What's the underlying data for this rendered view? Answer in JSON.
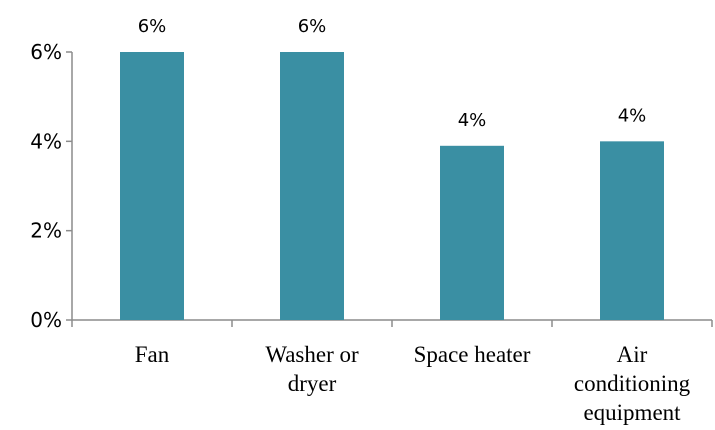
{
  "chart_data": {
    "type": "bar",
    "categories": [
      [
        "Fan"
      ],
      [
        "Washer or",
        "dryer"
      ],
      [
        "Space heater"
      ],
      [
        "Air",
        "conditioning",
        "equipment"
      ]
    ],
    "values": [
      6,
      6,
      3.9,
      4
    ],
    "value_labels": [
      "6%",
      "6%",
      "4%",
      "4%"
    ],
    "title": "",
    "xlabel": "",
    "ylabel": "",
    "ylim": [
      0,
      6
    ],
    "yticks": [
      0,
      2,
      4,
      6
    ],
    "ytick_labels": [
      "0%",
      "2%",
      "4%",
      "6%"
    ],
    "bar_color": "#3a8fa3",
    "axis_color": "#8c8c8c",
    "grid": false,
    "legend": "none"
  }
}
